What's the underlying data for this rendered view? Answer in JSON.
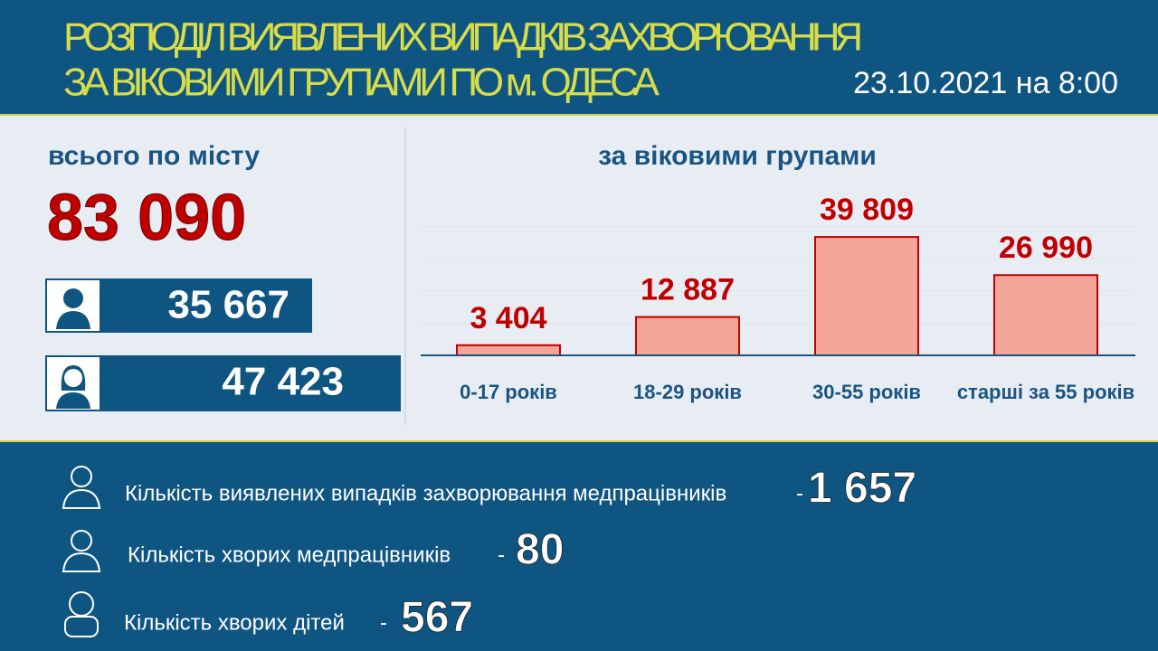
{
  "header": {
    "title_line1": "РОЗПОДІЛ ВИЯВЛЕНИХ ВИПАДКІВ ЗАХВОРЮВАННЯ",
    "title_line2": "ЗА ВІКОВИМИ ГРУПАМИ ПО м. ОДЕСА",
    "date": "23.10.2021 на 8:00"
  },
  "summary": {
    "label": "всього по місту",
    "total": "83 090",
    "male": "35 667",
    "female": "47 423"
  },
  "chart_data": {
    "type": "bar",
    "title": "за віковими групами",
    "categories": [
      "0-17 років",
      "18-29 років",
      "30-55 років",
      "старші за 55 років"
    ],
    "values": [
      3404,
      12887,
      39809,
      26990
    ],
    "value_labels": [
      "3 404",
      "12 887",
      "39 809",
      "26 990"
    ],
    "color": "#f2a598",
    "ylim": [
      0,
      45000
    ]
  },
  "footer": {
    "items": [
      {
        "label": "Кількість виявлених випадків захворювання медпрацівників",
        "separator": "-",
        "value": "1 657"
      },
      {
        "label": "Кількість хворих медпрацівників",
        "separator": "-",
        "value": "80"
      },
      {
        "label": "Кількість хворих дітей",
        "separator": "-",
        "value": "567"
      }
    ]
  }
}
